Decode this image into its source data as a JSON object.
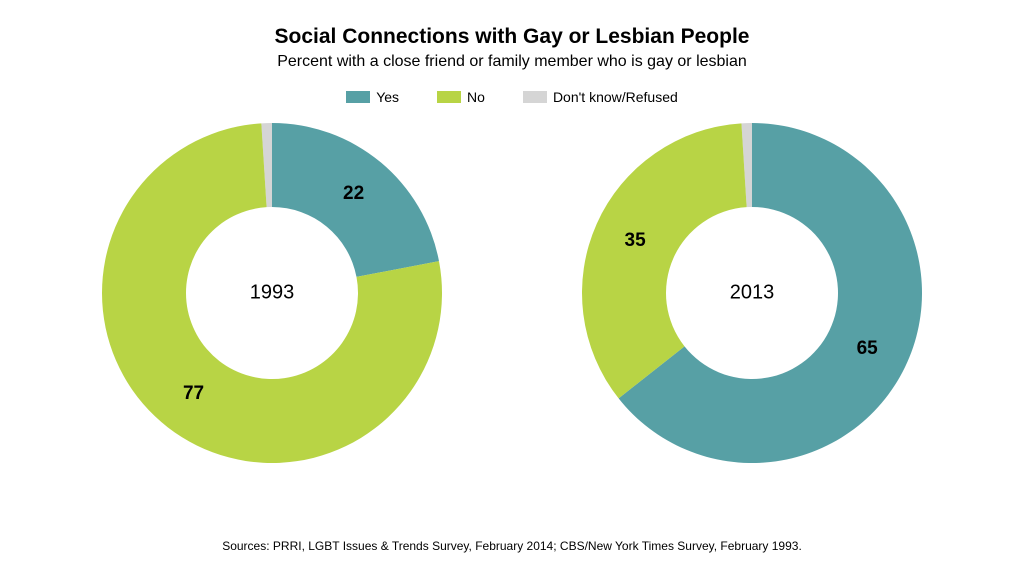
{
  "title": "Social Connections with Gay or Lesbian People",
  "title_fontsize": 21,
  "title_weight": "bold",
  "subtitle": "Percent with a close friend or family member who is gay or lesbian",
  "subtitle_fontsize": 16,
  "sources": "Sources: PRRI, LGBT Issues & Trends Survey, February 2014; CBS/New York Times Survey, February 1993.",
  "sources_fontsize": 12,
  "background_color": "#ffffff",
  "legend": {
    "fontsize": 14,
    "items": [
      {
        "label": "Yes",
        "color": "#57a0a5"
      },
      {
        "label": "No",
        "color": "#b8d445"
      },
      {
        "label": "Don't know/Refused",
        "color": "#d5d5d5"
      }
    ]
  },
  "donut": {
    "outer_radius": 170,
    "inner_radius": 86,
    "start_angle_deg": 0,
    "center_label_fontsize": 20,
    "slice_label_fontsize": 19,
    "label_radius": 128
  },
  "charts": [
    {
      "center_label": "1993",
      "slices": [
        {
          "key": "dk",
          "value": 1,
          "color": "#d5d5d5",
          "show_label": false,
          "label_color": "#000000"
        },
        {
          "key": "yes",
          "value": 22,
          "color": "#57a0a5",
          "show_label": true,
          "label_color": "#000000"
        },
        {
          "key": "no",
          "value": 77,
          "color": "#b8d445",
          "show_label": true,
          "label_color": "#000000"
        }
      ]
    },
    {
      "center_label": "2013",
      "slices": [
        {
          "key": "dk",
          "value": 1,
          "color": "#d5d5d5",
          "show_label": false,
          "label_color": "#000000"
        },
        {
          "key": "yes",
          "value": 65,
          "color": "#57a0a5",
          "show_label": true,
          "label_color": "#000000"
        },
        {
          "key": "no",
          "value": 35,
          "color": "#b8d445",
          "show_label": true,
          "label_color": "#000000"
        }
      ]
    }
  ]
}
